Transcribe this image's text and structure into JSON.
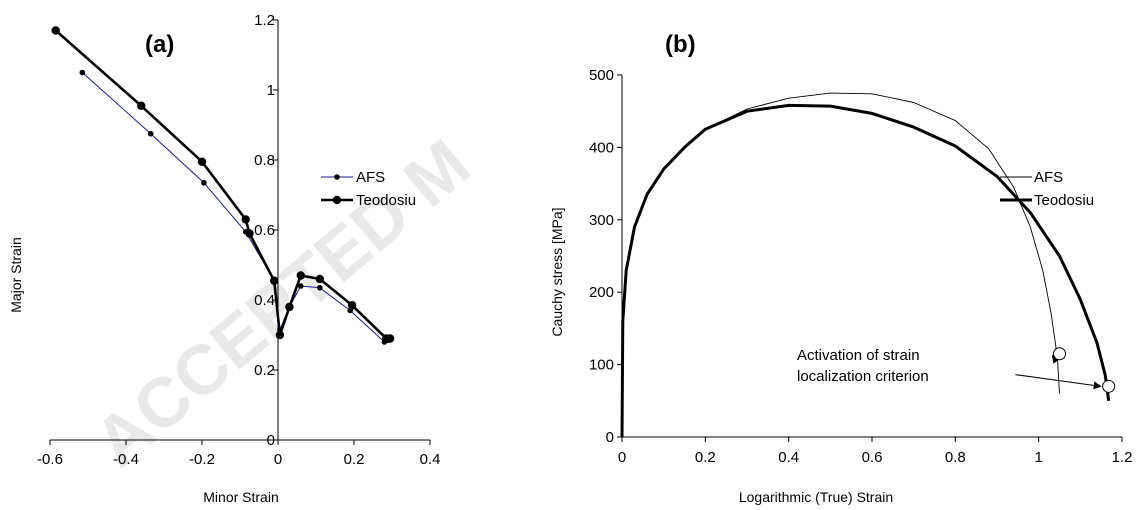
{
  "chart_data": [
    {
      "type": "line",
      "panel_label": "(a)",
      "xlabel": "Minor Strain",
      "ylabel": "Major Strain",
      "xlim": [
        -0.6,
        0.4
      ],
      "ylim": [
        0,
        1.2
      ],
      "xticks": [
        -0.6,
        -0.4,
        -0.2,
        0,
        0.2,
        0.4
      ],
      "yticks": [
        0,
        0.2,
        0.4,
        0.6,
        0.8,
        1,
        1.2
      ],
      "xtick_labels": [
        "-0.6",
        "-0.4",
        "-0.2",
        "0",
        "0.2",
        "0.4"
      ],
      "ytick_labels": [
        "0",
        "0.2",
        "0.4",
        "0.6",
        "0.8",
        "1",
        "1.2"
      ],
      "y_axis_at_x": 0,
      "grid": false,
      "legend": "right",
      "series": [
        {
          "name": "AFS",
          "color": "#1a1a8c",
          "style": "thin line, small dot markers",
          "points": [
            [
              -0.515,
              1.05
            ],
            [
              -0.335,
              0.875
            ],
            [
              -0.195,
              0.735
            ],
            [
              -0.085,
              0.595
            ],
            [
              -0.01,
              0.455
            ],
            [
              0.005,
              0.315
            ],
            [
              0.03,
              0.38
            ],
            [
              0.06,
              0.44
            ],
            [
              0.11,
              0.435
            ],
            [
              0.19,
              0.37
            ],
            [
              0.28,
              0.28
            ],
            [
              0.29,
              0.285
            ]
          ]
        },
        {
          "name": "Teodosiu",
          "color": "#000000",
          "style": "thick line, large dot markers",
          "points": [
            [
              -0.585,
              1.17
            ],
            [
              -0.36,
              0.955
            ],
            [
              -0.2,
              0.795
            ],
            [
              -0.085,
              0.63
            ],
            [
              -0.075,
              0.59
            ],
            [
              -0.01,
              0.455
            ],
            [
              0.005,
              0.3
            ],
            [
              0.03,
              0.38
            ],
            [
              0.06,
              0.47
            ],
            [
              0.11,
              0.46
            ],
            [
              0.195,
              0.385
            ],
            [
              0.285,
              0.29
            ],
            [
              0.295,
              0.29
            ]
          ]
        }
      ]
    },
    {
      "type": "line",
      "panel_label": "(b)",
      "xlabel": "Logarithmic (True) Strain",
      "ylabel": "Cauchy stress [MPa]",
      "xlim": [
        0,
        1.2
      ],
      "ylim": [
        0,
        500
      ],
      "xticks": [
        0,
        0.2,
        0.4,
        0.6,
        0.8,
        1,
        1.2
      ],
      "yticks": [
        0,
        100,
        200,
        300,
        400,
        500
      ],
      "xtick_labels": [
        "0",
        "0.2",
        "0.4",
        "0.6",
        "0.8",
        "1",
        "1.2"
      ],
      "ytick_labels": [
        "0",
        "100",
        "200",
        "300",
        "400",
        "500"
      ],
      "grid": false,
      "legend": "right",
      "series": [
        {
          "name": "AFS",
          "color": "#000000",
          "style": "thin line",
          "points": [
            [
              0,
              0
            ],
            [
              0.002,
              160
            ],
            [
              0.01,
              230
            ],
            [
              0.03,
              290
            ],
            [
              0.06,
              335
            ],
            [
              0.1,
              370
            ],
            [
              0.15,
              400
            ],
            [
              0.2,
              425
            ],
            [
              0.3,
              453
            ],
            [
              0.4,
              468
            ],
            [
              0.5,
              475
            ],
            [
              0.6,
              474
            ],
            [
              0.7,
              462
            ],
            [
              0.8,
              437
            ],
            [
              0.88,
              398
            ],
            [
              0.94,
              345
            ],
            [
              0.98,
              290
            ],
            [
              1.01,
              230
            ],
            [
              1.03,
              170
            ],
            [
              1.045,
              110
            ],
            [
              1.05,
              60
            ]
          ]
        },
        {
          "name": "Teodosiu",
          "color": "#000000",
          "style": "thick line",
          "points": [
            [
              0,
              0
            ],
            [
              0.002,
              160
            ],
            [
              0.01,
              230
            ],
            [
              0.03,
              290
            ],
            [
              0.06,
              335
            ],
            [
              0.1,
              370
            ],
            [
              0.15,
              400
            ],
            [
              0.2,
              425
            ],
            [
              0.3,
              450
            ],
            [
              0.4,
              458
            ],
            [
              0.5,
              457
            ],
            [
              0.6,
              447
            ],
            [
              0.7,
              428
            ],
            [
              0.8,
              402
            ],
            [
              0.9,
              360
            ],
            [
              0.98,
              310
            ],
            [
              1.05,
              250
            ],
            [
              1.1,
              190
            ],
            [
              1.14,
              130
            ],
            [
              1.16,
              85
            ],
            [
              1.168,
              50
            ]
          ]
        }
      ],
      "markers": [
        [
          1.05,
          115
        ],
        [
          1.168,
          70
        ]
      ],
      "annotation": {
        "lines": [
          "Activation of strain",
          "localization criterion"
        ],
        "anchor": [
          0.62,
          100
        ]
      }
    }
  ]
}
